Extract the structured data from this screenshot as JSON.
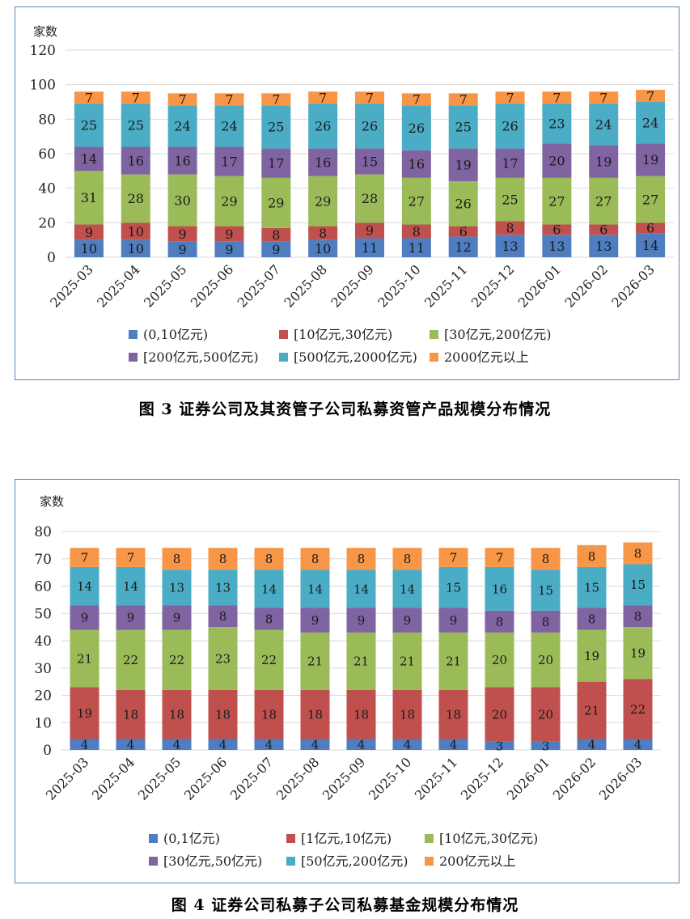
{
  "colors": {
    "blue": "#4f7dc0",
    "red": "#c0504d",
    "green": "#9bbb59",
    "purple": "#8064a2",
    "cyan": "#4bacc6",
    "orange": "#f79646"
  },
  "chart_data": [
    {
      "type": "bar",
      "stacked": true,
      "title": "",
      "ylabel": "家数",
      "xlabel": "",
      "ylim": [
        0,
        120
      ],
      "yticks": [
        0,
        20,
        40,
        60,
        80,
        100,
        120
      ],
      "categories": [
        "2025-03",
        "2025-04",
        "2025-05",
        "2025-06",
        "2025-07",
        "2025-08",
        "2025-09",
        "2025-10",
        "2025-11",
        "2025-12",
        "2026-01",
        "2026-02",
        "2026-03"
      ],
      "series": [
        {
          "name": "(0,10亿元)",
          "color": "blue",
          "values": [
            10,
            10,
            9,
            9,
            9,
            10,
            11,
            11,
            12,
            13,
            13,
            13,
            14
          ]
        },
        {
          "name": "[10亿元,30亿元)",
          "color": "red",
          "values": [
            9,
            10,
            9,
            9,
            8,
            8,
            9,
            8,
            6,
            8,
            6,
            6,
            6
          ]
        },
        {
          "name": "[30亿元,200亿元)",
          "color": "green",
          "values": [
            31,
            28,
            30,
            29,
            29,
            29,
            28,
            27,
            26,
            25,
            27,
            27,
            27
          ]
        },
        {
          "name": "[200亿元,500亿元)",
          "color": "purple",
          "values": [
            14,
            16,
            16,
            17,
            17,
            16,
            15,
            16,
            19,
            17,
            20,
            19,
            19
          ]
        },
        {
          "name": "[500亿元,2000亿元)",
          "color": "cyan",
          "values": [
            25,
            25,
            24,
            24,
            25,
            26,
            26,
            26,
            25,
            26,
            23,
            24,
            24
          ]
        },
        {
          "name": "2000亿元以上",
          "color": "orange",
          "values": [
            7,
            7,
            7,
            7,
            7,
            7,
            7,
            7,
            7,
            7,
            7,
            7,
            7
          ]
        }
      ],
      "caption": "图 3   证券公司及其资管子公司私募资管产品规模分布情况"
    },
    {
      "type": "bar",
      "stacked": true,
      "title": "",
      "ylabel": "家数",
      "xlabel": "",
      "ylim": [
        0,
        80
      ],
      "yticks": [
        0,
        10,
        20,
        30,
        40,
        50,
        60,
        70,
        80
      ],
      "categories": [
        "2025-03",
        "2025-04",
        "2025-05",
        "2025-06",
        "2025-07",
        "2025-08",
        "2025-09",
        "2025-10",
        "2025-11",
        "2025-12",
        "2026-01",
        "2026-02",
        "2026-03"
      ],
      "series": [
        {
          "name": "(0,1亿元)",
          "color": "blue",
          "values": [
            4,
            4,
            4,
            4,
            4,
            4,
            4,
            4,
            4,
            3,
            3,
            4,
            4
          ]
        },
        {
          "name": "[1亿元,10亿元)",
          "color": "red",
          "values": [
            19,
            18,
            18,
            18,
            18,
            18,
            18,
            18,
            18,
            20,
            20,
            21,
            22
          ]
        },
        {
          "name": "[10亿元,30亿元)",
          "color": "green",
          "values": [
            21,
            22,
            22,
            23,
            22,
            21,
            21,
            21,
            21,
            20,
            20,
            19,
            19
          ]
        },
        {
          "name": "[30亿元,50亿元)",
          "color": "purple",
          "values": [
            9,
            9,
            9,
            8,
            8,
            9,
            9,
            9,
            9,
            8,
            8,
            8,
            8
          ]
        },
        {
          "name": "[50亿元,200亿元)",
          "color": "cyan",
          "values": [
            14,
            14,
            13,
            13,
            14,
            14,
            14,
            14,
            15,
            16,
            15,
            15,
            15
          ]
        },
        {
          "name": "200亿元以上",
          "color": "orange",
          "values": [
            7,
            7,
            8,
            8,
            8,
            8,
            8,
            8,
            7,
            7,
            8,
            8,
            8
          ]
        }
      ],
      "caption": "图 4   证券公司私募子公司私募基金规模分布情况"
    }
  ]
}
